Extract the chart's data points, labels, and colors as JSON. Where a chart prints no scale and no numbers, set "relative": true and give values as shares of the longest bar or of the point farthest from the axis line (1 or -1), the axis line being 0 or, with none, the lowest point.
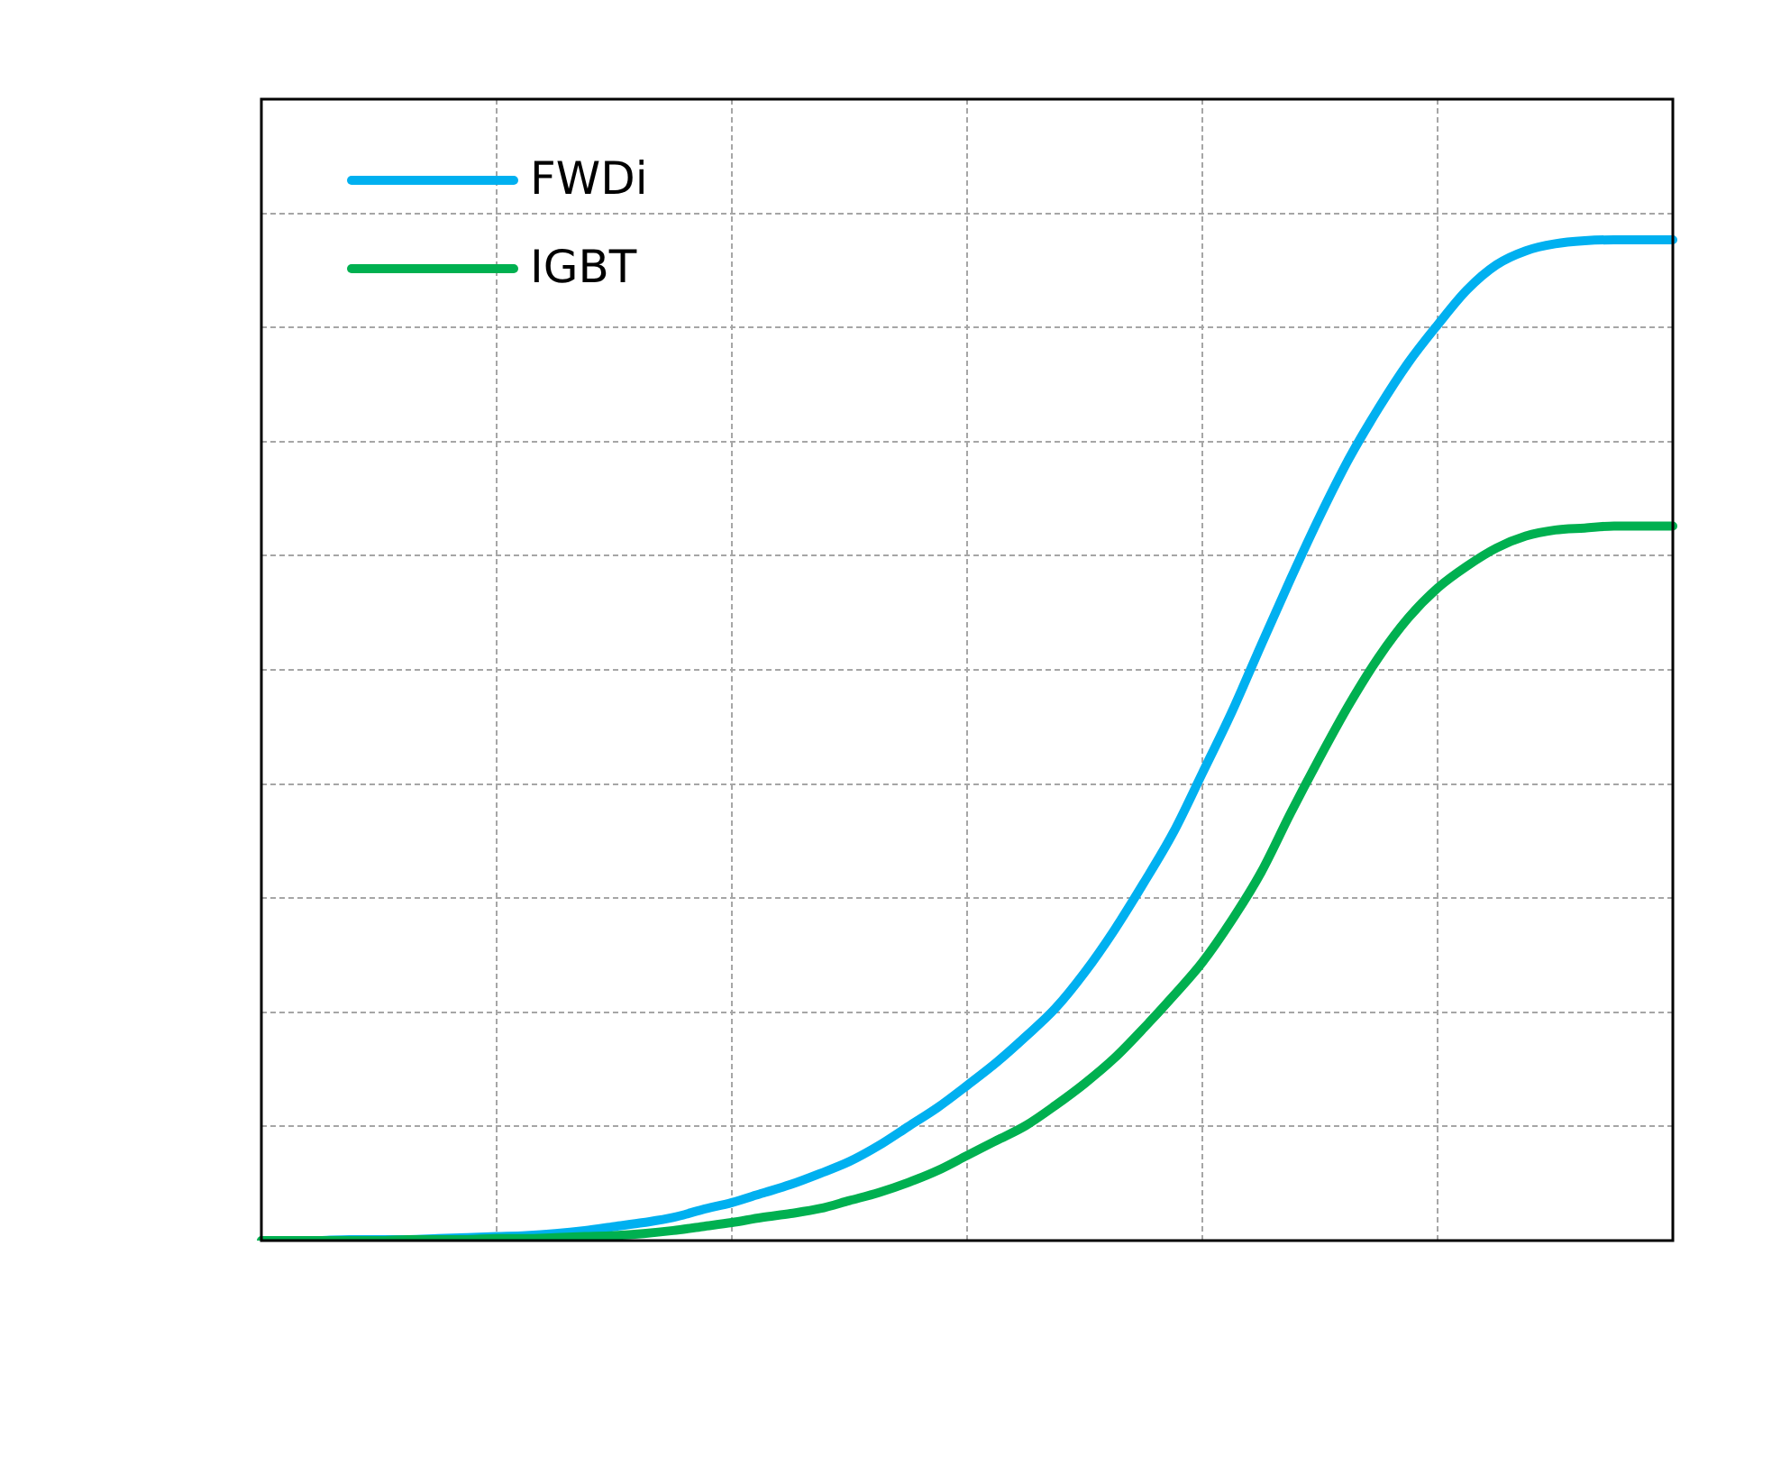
{
  "chart_data": {
    "type": "line",
    "relative": true,
    "categories": [
      null,
      null,
      null,
      null,
      null,
      null,
      null,
      null,
      null,
      null,
      null,
      null,
      null,
      null,
      null,
      null,
      null,
      null,
      null,
      null,
      null,
      null,
      null,
      null,
      null,
      null,
      null,
      null,
      null,
      null,
      null,
      null,
      null,
      null,
      null,
      null,
      null,
      null,
      null,
      null,
      null,
      null,
      null,
      null,
      null,
      null,
      null,
      null,
      null
    ],
    "series": [
      {
        "name": "FWDi",
        "color": "#00b0f0",
        "values": [
          null,
          null,
          0,
          0.001,
          0.001,
          0.001,
          0.002,
          0.003,
          0.004,
          0.005,
          0.007,
          0.01,
          0.014,
          0.018,
          0.023,
          0.031,
          0.038,
          0.047,
          0.056,
          0.067,
          0.079,
          0.095,
          0.114,
          0.133,
          0.155,
          0.178,
          0.204,
          0.232,
          0.268,
          0.31,
          0.357,
          0.407,
          0.467,
          0.528,
          0.595,
          0.661,
          0.724,
          0.782,
          0.832,
          0.877,
          0.915,
          0.95,
          0.975,
          0.989,
          0.996,
          0.999,
          1,
          1,
          1
        ]
      },
      {
        "name": "IGBT",
        "color": "#00b050",
        "values": [
          0,
          0,
          0,
          0,
          0,
          0.001,
          0.001,
          0.001,
          0.002,
          0.002,
          0.003,
          0.004,
          0.005,
          0.007,
          0.01,
          0.014,
          0.018,
          0.023,
          0.027,
          0.032,
          0.04,
          0.048,
          0.058,
          0.07,
          0.085,
          0.1,
          0.115,
          0.135,
          0.157,
          0.182,
          0.212,
          0.244,
          0.278,
          0.32,
          0.368,
          0.427,
          0.483,
          0.536,
          0.583,
          0.622,
          0.652,
          0.674,
          0.692,
          0.704,
          0.71,
          0.712,
          0.714,
          0.714,
          0.714
        ]
      }
    ],
    "grid": true,
    "legend": "top left"
  }
}
